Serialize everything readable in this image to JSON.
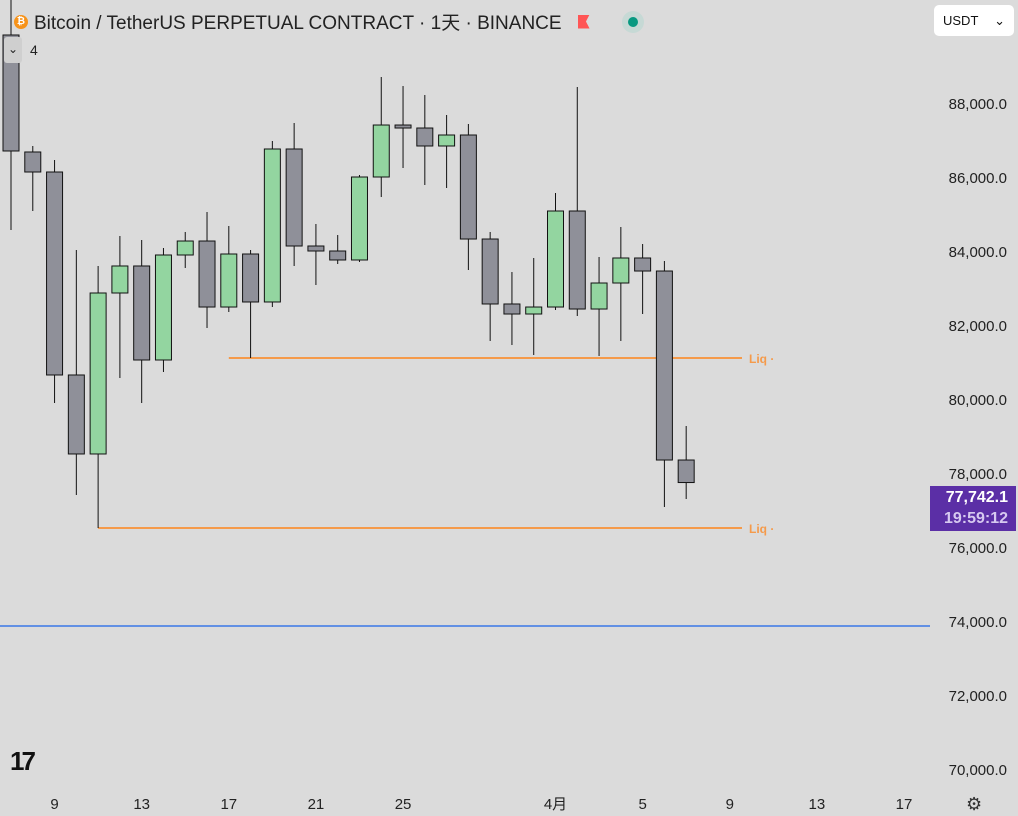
{
  "header": {
    "symbol": "Bitcoin / TetherUS PERPETUAL CONTRACT · 1天 · BINANCE",
    "collapse_count": "4"
  },
  "currency_select": {
    "value": "USDT"
  },
  "price_badge": {
    "price": "77,742.1",
    "countdown": "19:59:12"
  },
  "colors": {
    "up": "#93d5a0",
    "down": "#8f9099",
    "liq": "#f59a4a",
    "blue": "#3a78e8",
    "badge": "#5b2fa6"
  },
  "chart_data": {
    "type": "candlestick",
    "title": "Bitcoin / TetherUS PERPETUAL CONTRACT · 1天 · BINANCE",
    "ylim": [
      69500,
      90800
    ],
    "y_ticks": [
      70000,
      72000,
      74000,
      76000,
      78000,
      80000,
      82000,
      84000,
      86000,
      88000
    ],
    "y_tick_labels": [
      "70,000.0",
      "72,000.0",
      "74,000.0",
      "76,000.0",
      "78,000.0",
      "80,000.0",
      "82,000.0",
      "84,000.0",
      "86,000.0",
      "88,000.0"
    ],
    "x_tick_labels": [
      {
        "label": "9",
        "index": 2
      },
      {
        "label": "13",
        "index": 6
      },
      {
        "label": "17",
        "index": 10
      },
      {
        "label": "21",
        "index": 14
      },
      {
        "label": "25",
        "index": 18
      },
      {
        "label": "4月",
        "index": 25
      },
      {
        "label": "5",
        "index": 29
      },
      {
        "label": "9",
        "index": 33
      },
      {
        "label": "13",
        "index": 37
      },
      {
        "label": "17",
        "index": 41
      }
    ],
    "candles": [
      {
        "d": "03-07",
        "o": 89838,
        "h": 91000,
        "l": 84568,
        "c": 86703
      },
      {
        "d": "03-08",
        "o": 86676,
        "h": 86838,
        "l": 85081,
        "c": 86135
      },
      {
        "d": "03-09",
        "o": 86135,
        "h": 86459,
        "l": 79892,
        "c": 80649
      },
      {
        "d": "03-10",
        "o": 80649,
        "h": 84027,
        "l": 77405,
        "c": 78514
      },
      {
        "d": "03-11",
        "o": 78514,
        "h": 83595,
        "l": 76514,
        "c": 82865
      },
      {
        "d": "03-12",
        "o": 82865,
        "h": 84405,
        "l": 80568,
        "c": 83595
      },
      {
        "d": "03-13",
        "o": 83595,
        "h": 84297,
        "l": 79892,
        "c": 81054
      },
      {
        "d": "03-14",
        "o": 81054,
        "h": 84081,
        "l": 80730,
        "c": 83892
      },
      {
        "d": "03-15",
        "o": 83892,
        "h": 84514,
        "l": 83541,
        "c": 84270
      },
      {
        "d": "03-16",
        "o": 84270,
        "h": 85054,
        "l": 81919,
        "c": 82486
      },
      {
        "d": "03-17",
        "o": 82486,
        "h": 84676,
        "l": 82351,
        "c": 83919
      },
      {
        "d": "03-18",
        "o": 83919,
        "h": 84027,
        "l": 81108,
        "c": 82622
      },
      {
        "d": "03-19",
        "o": 82622,
        "h": 86973,
        "l": 82486,
        "c": 86757
      },
      {
        "d": "03-20",
        "o": 86757,
        "h": 87459,
        "l": 83595,
        "c": 84135
      },
      {
        "d": "03-21",
        "o": 84135,
        "h": 84730,
        "l": 83081,
        "c": 84000
      },
      {
        "d": "03-22",
        "o": 84000,
        "h": 84432,
        "l": 83649,
        "c": 83757
      },
      {
        "d": "03-23",
        "o": 83757,
        "h": 86054,
        "l": 83703,
        "c": 86000
      },
      {
        "d": "03-24",
        "o": 86000,
        "h": 88703,
        "l": 85459,
        "c": 87405
      },
      {
        "d": "03-25",
        "o": 87405,
        "h": 88459,
        "l": 86243,
        "c": 87324
      },
      {
        "d": "03-26",
        "o": 87324,
        "h": 88216,
        "l": 85784,
        "c": 86838
      },
      {
        "d": "03-27",
        "o": 86838,
        "h": 87676,
        "l": 85703,
        "c": 87135
      },
      {
        "d": "03-28",
        "o": 87135,
        "h": 87432,
        "l": 83486,
        "c": 84324
      },
      {
        "d": "03-29",
        "o": 84324,
        "h": 84514,
        "l": 81568,
        "c": 82568
      },
      {
        "d": "03-30",
        "o": 82568,
        "h": 83432,
        "l": 81459,
        "c": 82297
      },
      {
        "d": "03-31",
        "o": 82297,
        "h": 83811,
        "l": 81189,
        "c": 82486
      },
      {
        "d": "04-01",
        "o": 82486,
        "h": 85568,
        "l": 82405,
        "c": 85081
      },
      {
        "d": "04-02",
        "o": 85081,
        "h": 88432,
        "l": 82243,
        "c": 82432
      },
      {
        "d": "04-03",
        "o": 82432,
        "h": 83838,
        "l": 81162,
        "c": 83135
      },
      {
        "d": "04-04",
        "o": 83135,
        "h": 84649,
        "l": 81568,
        "c": 83811
      },
      {
        "d": "04-05",
        "o": 83811,
        "h": 84189,
        "l": 82297,
        "c": 83459
      },
      {
        "d": "04-06",
        "o": 83459,
        "h": 83730,
        "l": 77081,
        "c": 78351
      },
      {
        "d": "04-07",
        "o": 78351,
        "h": 79270,
        "l": 77297,
        "c": 77742
      }
    ],
    "levels": [
      {
        "label": "Liq",
        "price": 81108,
        "from_index": 10
      },
      {
        "label": "Liq",
        "price": 76514,
        "from_index": 4
      },
      {
        "label": "",
        "price": 73865,
        "from_index": -1
      }
    ]
  }
}
